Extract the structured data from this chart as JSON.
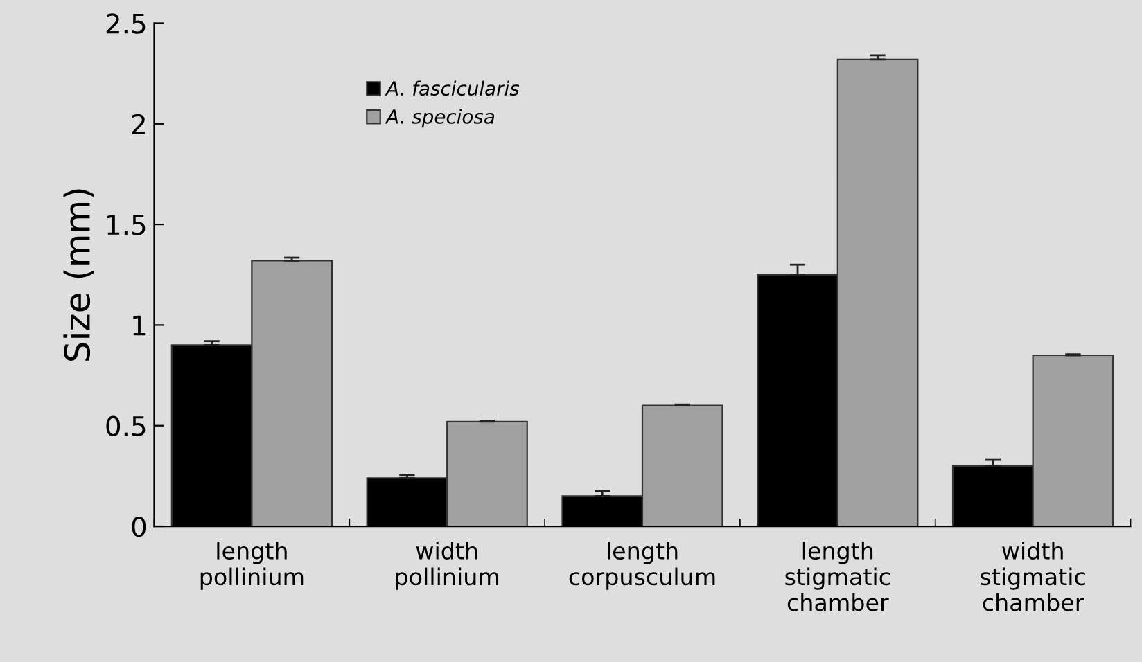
{
  "chart_data": {
    "type": "bar",
    "ylabel": "Size (mm)",
    "categories": [
      "length\npollinium",
      "width\npollinium",
      "length\ncorpusculum",
      "length\nstigmatic\nchamber",
      "width\nstigmatic\nchamber"
    ],
    "series": [
      {
        "name": "A. fascicularis",
        "color": "#000000",
        "values": [
          0.9,
          0.24,
          0.15,
          1.25,
          0.3
        ],
        "errors": [
          0.02,
          0.015,
          0.025,
          0.05,
          0.03
        ]
      },
      {
        "name": "A. speciosa",
        "color": "#a0a0a0",
        "values": [
          1.32,
          0.52,
          0.6,
          2.32,
          0.85
        ],
        "errors": [
          0.015,
          0.005,
          0.005,
          0.02,
          0.005
        ]
      }
    ],
    "ylim": [
      0,
      2.5
    ],
    "yticks": [
      0,
      0.5,
      1,
      1.5,
      2,
      2.5
    ],
    "grid": false,
    "legend": "top left"
  }
}
